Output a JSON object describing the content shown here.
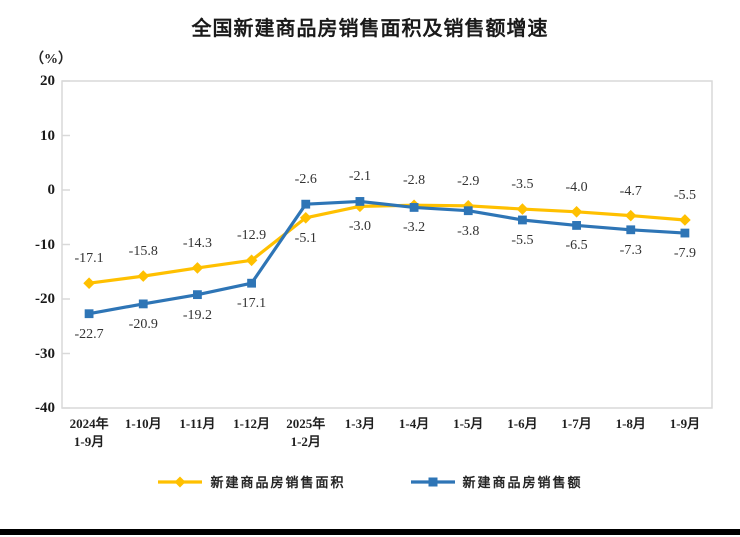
{
  "chart_data": {
    "type": "line",
    "title": "全国新建商品房销售面积及销售额增速",
    "unit_label": "（%）",
    "ylim": [
      -40,
      20
    ],
    "yticks": [
      20,
      10,
      0,
      -10,
      -20,
      -30,
      -40
    ],
    "grid": false,
    "legend_position": "bottom",
    "categories": [
      [
        "2024年",
        "1-9月"
      ],
      [
        "1-10月"
      ],
      [
        "1-11月"
      ],
      [
        "1-12月"
      ],
      [
        "2025年",
        "1-2月"
      ],
      [
        "1-3月"
      ],
      [
        "1-4月"
      ],
      [
        "1-5月"
      ],
      [
        "1-6月"
      ],
      [
        "1-7月"
      ],
      [
        "1-8月"
      ],
      [
        "1-9月"
      ]
    ],
    "series": [
      {
        "name": "新建商品房销售面积",
        "color": "#FFC000",
        "marker": "diamond",
        "values": [
          -17.1,
          -15.8,
          -14.3,
          -12.9,
          -5.1,
          -3.0,
          -2.8,
          -2.9,
          -3.5,
          -4.0,
          -4.7,
          -5.5
        ]
      },
      {
        "name": "新建商品房销售额",
        "color": "#2E75B6",
        "marker": "square",
        "values": [
          -22.7,
          -20.9,
          -19.2,
          -17.1,
          -2.6,
          -2.1,
          -3.2,
          -3.8,
          -5.5,
          -6.5,
          -7.3,
          -7.9
        ]
      }
    ]
  },
  "colors": {
    "plot_border": "#D9D9D9",
    "axis_text": "#1a1a1a",
    "data_label_text": "#333333",
    "divider": "#000000"
  }
}
